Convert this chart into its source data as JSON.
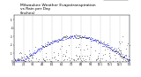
{
  "title": "Milwaukee Weather Evapotranspiration\nvs Rain per Day\n(Inches)",
  "title_fontsize": 3.2,
  "background_color": "#ffffff",
  "legend_labels": [
    "Evapotranspiration",
    "Rain"
  ],
  "legend_colors": [
    "#0000ff",
    "#ff0000"
  ],
  "xlim": [
    0,
    365
  ],
  "ylim": [
    0.0,
    0.55
  ],
  "xtick_positions": [
    0,
    31,
    59,
    90,
    120,
    151,
    181,
    212,
    243,
    273,
    304,
    334,
    365
  ],
  "xtick_labels": [
    "1/1",
    "2/1",
    "3/1",
    "4/1",
    "5/1",
    "6/1",
    "7/1",
    "8/1",
    "9/1",
    "10/1",
    "11/1",
    "12/1",
    "1/1"
  ],
  "ytick_positions": [
    0.0,
    0.1,
    0.2,
    0.3,
    0.4,
    0.5
  ],
  "ytick_labels": [
    "0",
    ".1",
    ".2",
    ".3",
    ".4",
    ".5"
  ],
  "grid_color": "#bbbbbb",
  "evap_color": "#0000ff",
  "rain_color": "#ff0000",
  "both_color": "#000000",
  "dot_size": 0.8
}
